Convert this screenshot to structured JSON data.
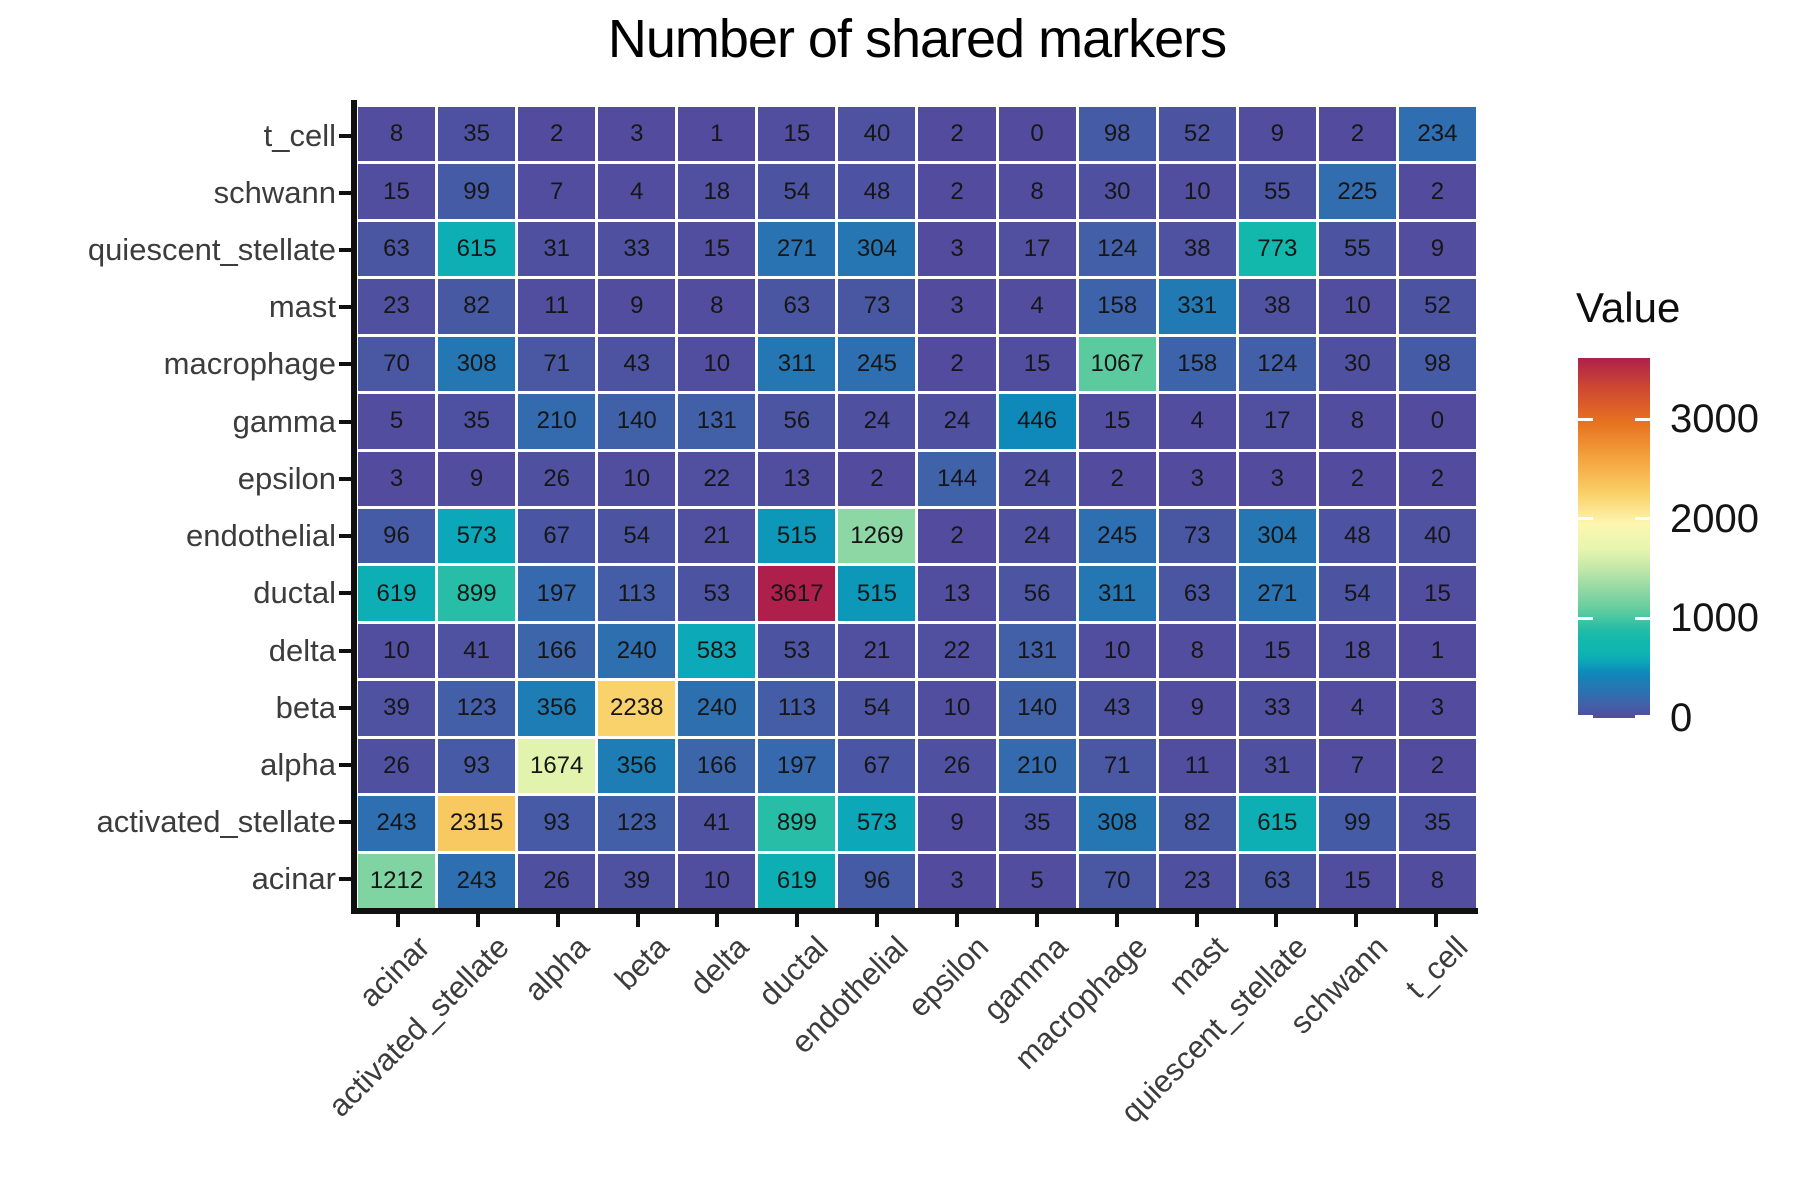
{
  "title": "Number of shared markers",
  "legend": {
    "title": "Value",
    "tick_values": [
      0,
      1000,
      2000,
      3000
    ],
    "tick_labels": [
      "0",
      "1000",
      "2000",
      "3000"
    ]
  },
  "chart_data": {
    "type": "heatmap",
    "title": "Number of shared markers",
    "x_categories": [
      "acinar",
      "activated_stellate",
      "alpha",
      "beta",
      "delta",
      "ductal",
      "endothelial",
      "epsilon",
      "gamma",
      "macrophage",
      "mast",
      "quiescent_stellate",
      "schwann",
      "t_cell"
    ],
    "y_categories_top_to_bottom": [
      "t_cell",
      "schwann",
      "quiescent_stellate",
      "mast",
      "macrophage",
      "gamma",
      "epsilon",
      "endothelial",
      "ductal",
      "delta",
      "beta",
      "alpha",
      "activated_stellate",
      "acinar"
    ],
    "values": [
      [
        8,
        35,
        2,
        3,
        1,
        15,
        40,
        2,
        0,
        98,
        52,
        9,
        2,
        234
      ],
      [
        15,
        99,
        7,
        4,
        18,
        54,
        48,
        2,
        8,
        30,
        10,
        55,
        225,
        2
      ],
      [
        63,
        615,
        31,
        33,
        15,
        271,
        304,
        3,
        17,
        124,
        38,
        773,
        55,
        9
      ],
      [
        23,
        82,
        11,
        9,
        8,
        63,
        73,
        3,
        4,
        158,
        331,
        38,
        10,
        52
      ],
      [
        70,
        308,
        71,
        43,
        10,
        311,
        245,
        2,
        15,
        1067,
        158,
        124,
        30,
        98
      ],
      [
        5,
        35,
        210,
        140,
        131,
        56,
        24,
        24,
        446,
        15,
        4,
        17,
        8,
        0
      ],
      [
        3,
        9,
        26,
        10,
        22,
        13,
        2,
        144,
        24,
        2,
        3,
        3,
        2,
        2
      ],
      [
        96,
        573,
        67,
        54,
        21,
        515,
        1269,
        2,
        24,
        245,
        73,
        304,
        48,
        40
      ],
      [
        619,
        899,
        197,
        113,
        53,
        3617,
        515,
        13,
        56,
        311,
        63,
        271,
        54,
        15
      ],
      [
        10,
        41,
        166,
        240,
        583,
        53,
        21,
        22,
        131,
        10,
        8,
        15,
        18,
        1
      ],
      [
        39,
        123,
        356,
        2238,
        240,
        113,
        54,
        10,
        140,
        43,
        9,
        33,
        4,
        3
      ],
      [
        26,
        93,
        1674,
        356,
        166,
        197,
        67,
        26,
        210,
        71,
        11,
        31,
        7,
        2
      ],
      [
        243,
        2315,
        93,
        123,
        41,
        899,
        573,
        9,
        35,
        308,
        82,
        615,
        99,
        35
      ],
      [
        1212,
        243,
        26,
        39,
        10,
        619,
        96,
        3,
        5,
        70,
        23,
        63,
        15,
        8
      ]
    ],
    "value_range": [
      0,
      3617
    ],
    "grid": false,
    "legend_position": "right",
    "colorscale_stops": [
      [
        0,
        "#534C9E"
      ],
      [
        150,
        "#3F63A9"
      ],
      [
        250,
        "#2C70B1"
      ],
      [
        350,
        "#1F7CB5"
      ],
      [
        460,
        "#0D8ABB"
      ],
      [
        580,
        "#0CA9B8"
      ],
      [
        640,
        "#0FB2B2"
      ],
      [
        800,
        "#14B9AB"
      ],
      [
        900,
        "#27BDA6"
      ],
      [
        1100,
        "#65CE9E"
      ],
      [
        1300,
        "#93D9A5"
      ],
      [
        1500,
        "#C2E7A9"
      ],
      [
        1700,
        "#E7F5AE"
      ],
      [
        1950,
        "#FDF6B0"
      ],
      [
        2250,
        "#FAD169"
      ],
      [
        2600,
        "#F4A43F"
      ],
      [
        2950,
        "#E87420"
      ],
      [
        3300,
        "#D04A31"
      ],
      [
        3617,
        "#AE204B"
      ]
    ]
  }
}
